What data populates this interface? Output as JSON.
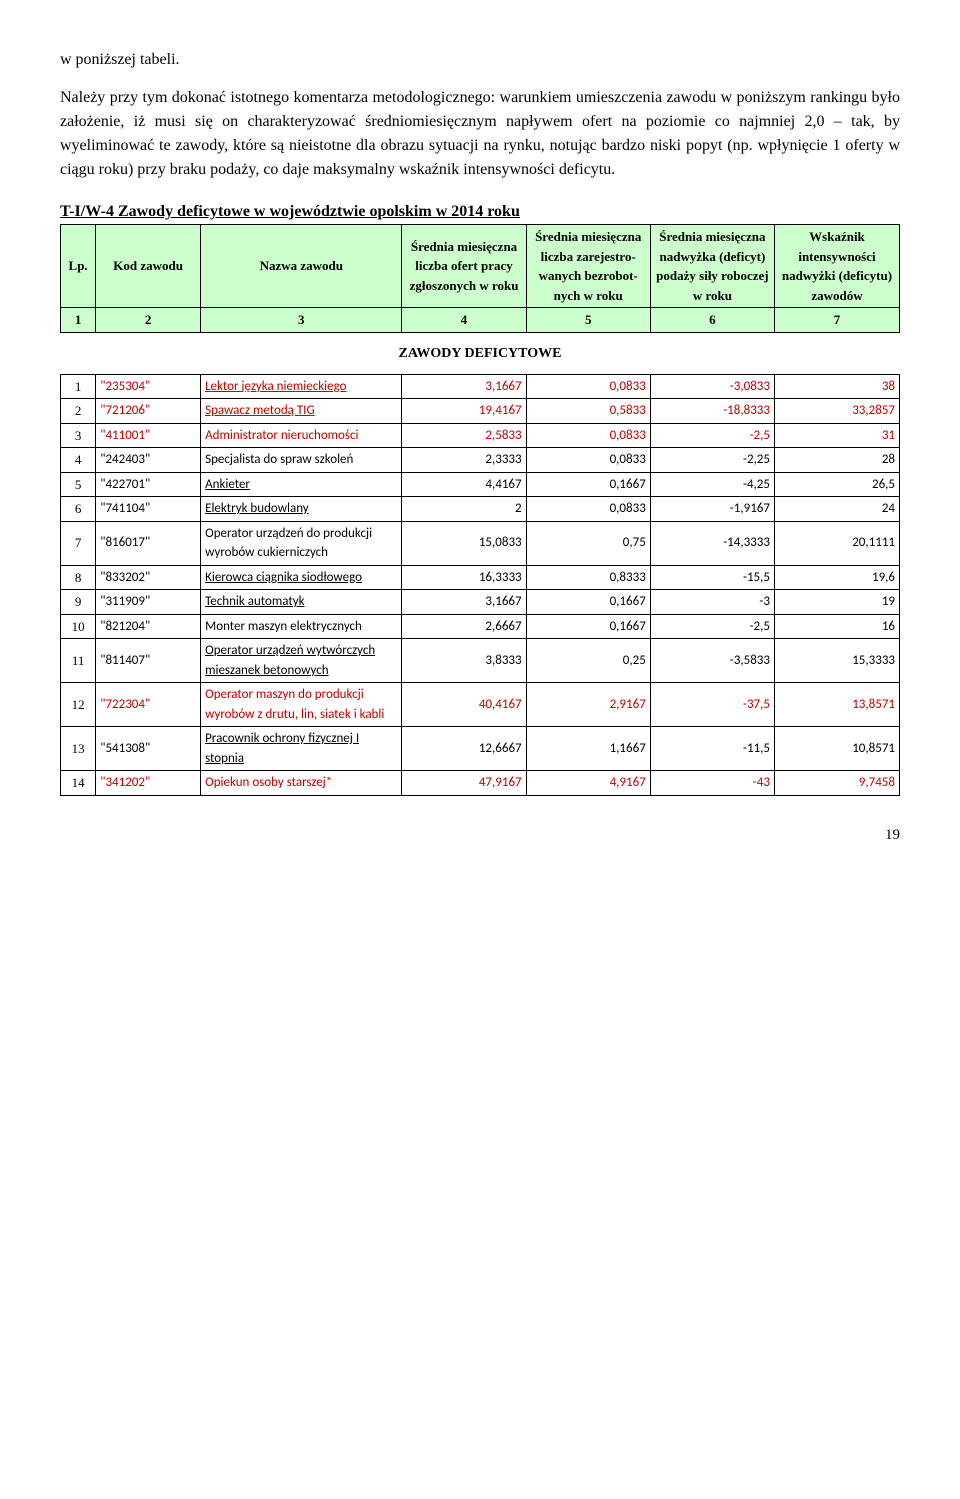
{
  "para1": "w poniższej tabeli.",
  "para2": "Należy przy tym dokonać istotnego komentarza metodologicznego: warunkiem umieszczenia zawodu w poniższym rankingu było założenie, iż musi się on charakteryzować średniomiesięcznym napływem ofert na poziomie co najmniej 2,0 – tak, by wyeliminować te zawody, które są nieistotne dla obrazu sytuacji na rynku, notując bardzo niski popyt (np. wpłynięcie 1 oferty w ciągu roku) przy braku podaży, co daje maksymalny wskaźnik intensywności deficytu.",
  "table_title": "T-I/W-4 Zawody deficytowe w województwie opolskim w 2014 roku",
  "headers": {
    "c1": "Lp.",
    "c2": "Kod zawodu",
    "c3": "Nazwa zawodu",
    "c4": "Średnia miesięczna liczba ofert pracy zgłoszonych w roku",
    "c5": "Średnia miesięczna liczba zarejestro-wanych bezrobot-nych w roku",
    "c6": "Średnia miesięczna nadwyżka (deficyt) podaży siły roboczej w roku",
    "c7": "Wskaźnik intensywności nadwyżki (deficytu) zawodów"
  },
  "header_nums": [
    "1",
    "2",
    "3",
    "4",
    "5",
    "6",
    "7"
  ],
  "section_label": "ZAWODY DEFICYTOWE",
  "rows": [
    {
      "lp": "1",
      "code": "\"235304\"",
      "name": "Lektor języka niemieckiego",
      "v4": "3,1667",
      "v5": "0,0833",
      "v6": "-3,0833",
      "v7": "38",
      "red": true,
      "u": true
    },
    {
      "lp": "2",
      "code": "\"721206\"",
      "name": "Spawacz metodą TIG",
      "v4": "19,4167",
      "v5": "0,5833",
      "v6": "-18,8333",
      "v7": "33,2857",
      "red": true,
      "u": true
    },
    {
      "lp": "3",
      "code": "\"411001\"",
      "name": "Administrator nieruchomości",
      "v4": "2,5833",
      "v5": "0,0833",
      "v6": "-2,5",
      "v7": "31",
      "red": true,
      "u": false
    },
    {
      "lp": "4",
      "code": "\"242403\"",
      "name": "Specjalista do spraw szkoleń",
      "v4": "2,3333",
      "v5": "0,0833",
      "v6": "-2,25",
      "v7": "28",
      "red": false,
      "u": false
    },
    {
      "lp": "5",
      "code": "\"422701\"",
      "name": "Ankieter",
      "v4": "4,4167",
      "v5": "0,1667",
      "v6": "-4,25",
      "v7": "26,5",
      "red": false,
      "u": true
    },
    {
      "lp": "6",
      "code": "\"741104\"",
      "name": "Elektryk budowlany",
      "v4": "2",
      "v5": "0,0833",
      "v6": "-1,9167",
      "v7": "24",
      "red": false,
      "u": true
    },
    {
      "lp": "7",
      "code": "\"816017\"",
      "name": "Operator urządzeń do produkcji wyrobów cukierniczych",
      "v4": "15,0833",
      "v5": "0,75",
      "v6": "-14,3333",
      "v7": "20,1111",
      "red": false,
      "u": false
    },
    {
      "lp": "8",
      "code": "\"833202\"",
      "name": "Kierowca ciągnika siodłowego",
      "v4": "16,3333",
      "v5": "0,8333",
      "v6": "-15,5",
      "v7": "19,6",
      "red": false,
      "u": true
    },
    {
      "lp": "9",
      "code": "\"311909\"",
      "name": "Technik automatyk",
      "v4": "3,1667",
      "v5": "0,1667",
      "v6": "-3",
      "v7": "19",
      "red": false,
      "u": true
    },
    {
      "lp": "10",
      "code": "\"821204\"",
      "name": "Monter maszyn elektrycznych",
      "v4": "2,6667",
      "v5": "0,1667",
      "v6": "-2,5",
      "v7": "16",
      "red": false,
      "u": false
    },
    {
      "lp": "11",
      "code": "\"811407\"",
      "name": "Operator urządzeń wytwórczych mieszanek betonowych",
      "v4": "3,8333",
      "v5": "0,25",
      "v6": "-3,5833",
      "v7": "15,3333",
      "red": false,
      "u": true
    },
    {
      "lp": "12",
      "code": "\"722304\"",
      "name": "Operator maszyn do produkcji wyrobów z drutu, lin, siatek i kabli",
      "v4": "40,4167",
      "v5": "2,9167",
      "v6": "-37,5",
      "v7": "13,8571",
      "red": true,
      "u": false
    },
    {
      "lp": "13",
      "code": "\"541308\"",
      "name": "Pracownik ochrony fizycznej I stopnia",
      "v4": "12,6667",
      "v5": "1,1667",
      "v6": "-11,5",
      "v7": "10,8571",
      "red": false,
      "u": true
    },
    {
      "lp": "14",
      "code": "\"341202\"",
      "name": "Opiekun osoby starszej*",
      "v4": "47,9167",
      "v5": "4,9167",
      "v6": "-43",
      "v7": "9,7458",
      "red": true,
      "u": false
    }
  ],
  "page_number": "19"
}
